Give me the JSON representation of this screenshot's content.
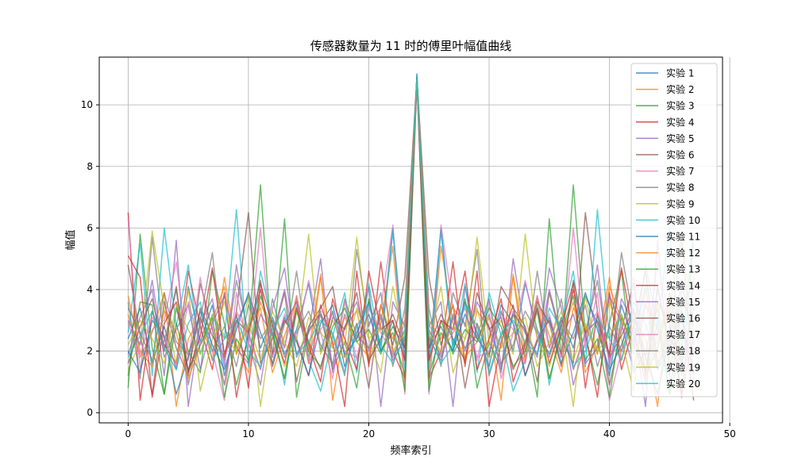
{
  "chart_data": {
    "type": "line",
    "title": "传感器数量为 11 时的傅里叶幅值曲线",
    "xlabel": "频率索引",
    "ylabel": "幅值",
    "xlim": [
      -2.4,
      49.4
    ],
    "ylim": [
      -0.33,
      11.55
    ],
    "xticks": [
      0,
      10,
      20,
      30,
      40,
      50
    ],
    "yticks": [
      0,
      2,
      4,
      6,
      8,
      10
    ],
    "grid": true,
    "legend_position": "top-right",
    "x": [
      0,
      1,
      2,
      3,
      4,
      5,
      6,
      7,
      8,
      9,
      10,
      11,
      12,
      13,
      14,
      15,
      16,
      17,
      18,
      19,
      20,
      21,
      22,
      23,
      24,
      25,
      26,
      27,
      28,
      29,
      30,
      31,
      32,
      33,
      34,
      35,
      36,
      37,
      38,
      39,
      40,
      41,
      42,
      43,
      44,
      45,
      46,
      47
    ],
    "series": [
      {
        "name": "实验 1",
        "color": "#1f77b4",
        "values": [
          2.4,
          3.4,
          1.6,
          2.8,
          1.4,
          4.1,
          2.3,
          3.5,
          1.2,
          2.9,
          3.8,
          2.1,
          3.1,
          1.9,
          2.7,
          4.2,
          2.0,
          3.3,
          1.5,
          2.6,
          3.6,
          2.2,
          6.0,
          1.7,
          11.0,
          1.7,
          6.0,
          2.2,
          3.6,
          2.6,
          1.5,
          3.3,
          2.0,
          4.2,
          2.7,
          1.9,
          3.1,
          2.1,
          3.8,
          2.9,
          1.2,
          3.5,
          2.3,
          4.1,
          1.4,
          2.8,
          1.6,
          3.4
        ]
      },
      {
        "name": "实验 2",
        "color": "#ff7f0e",
        "values": [
          3.2,
          1.8,
          2.6,
          3.9,
          0.2,
          2.4,
          3.1,
          1.7,
          4.4,
          2.2,
          1.3,
          3.6,
          2.5,
          1.1,
          3.8,
          2.0,
          4.5,
          0.4,
          2.8,
          3.3,
          1.6,
          2.9,
          5.4,
          1.0,
          10.9,
          1.0,
          5.4,
          2.9,
          1.6,
          3.3,
          2.8,
          0.4,
          4.5,
          2.0,
          3.8,
          1.1,
          2.5,
          3.6,
          1.3,
          2.2,
          4.4,
          1.7,
          3.1,
          2.4,
          0.2,
          3.9,
          2.6,
          1.8
        ]
      },
      {
        "name": "实验 3",
        "color": "#2ca02c",
        "values": [
          0.8,
          5.8,
          2.1,
          0.6,
          3.4,
          2.0,
          1.3,
          4.6,
          2.9,
          0.9,
          2.5,
          7.4,
          1.8,
          6.3,
          0.5,
          2.7,
          3.2,
          1.4,
          2.3,
          0.8,
          3.7,
          2.0,
          2.6,
          1.2,
          10.8,
          1.2,
          2.6,
          2.0,
          3.7,
          0.8,
          2.3,
          1.4,
          3.2,
          2.7,
          0.5,
          6.3,
          1.8,
          7.4,
          2.5,
          0.9,
          2.9,
          4.6,
          1.3,
          2.0,
          3.4,
          0.6,
          2.1,
          5.8
        ]
      },
      {
        "name": "实验 4",
        "color": "#d62728",
        "values": [
          6.5,
          0.4,
          3.3,
          2.2,
          1.6,
          4.6,
          2.8,
          1.4,
          3.9,
          0.5,
          2.6,
          4.0,
          1.9,
          3.0,
          2.4,
          1.2,
          3.5,
          2.3,
          0.2,
          4.6,
          1.5,
          4.9,
          2.0,
          1.1,
          10.8,
          1.1,
          2.0,
          4.9,
          1.5,
          4.6,
          0.2,
          2.3,
          3.5,
          1.2,
          2.4,
          3.0,
          1.9,
          4.0,
          2.6,
          0.5,
          3.9,
          1.4,
          2.8,
          4.6,
          1.6,
          2.2,
          3.3,
          0.4
        ]
      },
      {
        "name": "实验 5",
        "color": "#9467bd",
        "values": [
          1.9,
          3.1,
          4.0,
          1.2,
          5.6,
          0.2,
          2.9,
          3.7,
          1.5,
          4.8,
          2.3,
          0.9,
          3.4,
          4.7,
          1.8,
          2.6,
          5.0,
          1.3,
          3.2,
          2.4,
          4.1,
          0.2,
          3.6,
          2.8,
          10.7,
          2.8,
          3.6,
          0.2,
          4.1,
          2.4,
          3.2,
          1.3,
          5.0,
          2.6,
          1.8,
          4.7,
          3.4,
          0.9,
          2.3,
          4.8,
          1.5,
          3.7,
          2.9,
          0.2,
          5.6,
          1.2,
          4.0,
          3.1
        ]
      },
      {
        "name": "实验 6",
        "color": "#8c564b",
        "values": [
          4.8,
          2.5,
          0.6,
          3.6,
          2.1,
          1.2,
          4.2,
          2.7,
          0.9,
          3.3,
          6.5,
          1.6,
          2.4,
          3.9,
          1.0,
          2.8,
          3.4,
          4.1,
          1.8,
          2.9,
          0.8,
          3.5,
          2.2,
          4.4,
          10.9,
          4.4,
          2.2,
          3.5,
          0.8,
          2.9,
          1.8,
          4.1,
          3.4,
          2.8,
          1.0,
          3.9,
          2.4,
          1.6,
          6.5,
          3.3,
          0.9,
          2.7,
          4.2,
          1.2,
          2.1,
          3.6,
          0.6,
          2.5
        ]
      },
      {
        "name": "实验 7",
        "color": "#e377c2",
        "values": [
          6.3,
          1.4,
          2.7,
          3.0,
          4.9,
          1.7,
          4.4,
          2.0,
          0.4,
          3.9,
          2.1,
          6.0,
          1.8,
          3.2,
          2.4,
          4.3,
          2.6,
          1.1,
          3.6,
          1.7,
          2.9,
          3.4,
          6.1,
          0.6,
          10.7,
          0.6,
          6.1,
          3.4,
          2.9,
          1.7,
          3.6,
          1.1,
          2.6,
          4.3,
          2.4,
          3.2,
          1.8,
          6.0,
          2.1,
          3.9,
          0.4,
          2.0,
          4.4,
          1.7,
          4.9,
          3.0,
          2.7,
          1.4
        ]
      },
      {
        "name": "实验 8",
        "color": "#7f7f7f",
        "values": [
          3.6,
          1.1,
          5.7,
          2.3,
          4.0,
          0.9,
          3.0,
          5.2,
          1.7,
          4.3,
          2.6,
          1.4,
          3.7,
          2.1,
          4.6,
          1.8,
          3.2,
          2.5,
          1.2,
          5.3,
          2.8,
          3.9,
          1.5,
          3.4,
          10.9,
          3.4,
          1.5,
          3.9,
          2.8,
          5.3,
          1.2,
          2.5,
          3.2,
          1.8,
          4.6,
          2.1,
          3.7,
          1.4,
          2.6,
          4.3,
          1.7,
          5.2,
          3.0,
          0.9,
          4.0,
          2.3,
          5.7,
          1.1
        ]
      },
      {
        "name": "实验 9",
        "color": "#bcbd22",
        "values": [
          1.4,
          2.3,
          5.9,
          3.4,
          1.6,
          4.0,
          0.7,
          2.4,
          3.6,
          1.9,
          3.8,
          0.2,
          2.9,
          1.5,
          2.4,
          5.8,
          1.9,
          3.0,
          2.2,
          5.7,
          2.4,
          1.3,
          4.1,
          2.2,
          10.8,
          2.2,
          4.1,
          1.3,
          2.4,
          5.7,
          2.2,
          3.0,
          1.9,
          5.8,
          2.4,
          1.5,
          2.9,
          0.2,
          3.8,
          1.9,
          3.6,
          2.4,
          0.7,
          4.0,
          1.6,
          3.4,
          5.9,
          2.3
        ]
      },
      {
        "name": "实验 10",
        "color": "#17becf",
        "values": [
          2.6,
          5.5,
          1.2,
          6.0,
          2.8,
          4.8,
          1.9,
          3.2,
          2.4,
          6.6,
          1.5,
          4.6,
          2.9,
          0.9,
          3.5,
          1.7,
          0.7,
          2.5,
          3.9,
          1.3,
          4.2,
          2.0,
          5.9,
          1.4,
          11.0,
          1.4,
          5.9,
          2.0,
          4.2,
          1.3,
          3.9,
          2.5,
          0.7,
          1.7,
          3.5,
          0.9,
          2.9,
          4.6,
          1.5,
          6.6,
          2.4,
          3.2,
          1.9,
          4.8,
          2.8,
          6.0,
          1.2,
          5.5
        ]
      },
      {
        "name": "实验 11",
        "color": "#1f77b4",
        "values": [
          2.0,
          1.3,
          3.0,
          2.5,
          0.6,
          1.8,
          3.3,
          2.2,
          1.4,
          2.7,
          3.9,
          2.6,
          1.6,
          3.1,
          2.3,
          1.2,
          2.9,
          3.5,
          1.9,
          2.4,
          3.2,
          2.0,
          2.8,
          2.1,
          10.9,
          2.1,
          2.8,
          2.0,
          3.2,
          2.4,
          1.9,
          3.5,
          2.9,
          1.2,
          2.3,
          3.1,
          1.6,
          2.6,
          3.9,
          2.7,
          1.4,
          2.2,
          3.3,
          1.8,
          0.6,
          2.5,
          3.0,
          1.3
        ]
      },
      {
        "name": "实验 12",
        "color": "#ff7f0e",
        "values": [
          3.8,
          2.0,
          1.5,
          3.3,
          2.6,
          1.1,
          2.2,
          3.0,
          4.1,
          1.9,
          2.8,
          3.4,
          1.3,
          2.5,
          3.7,
          1.6,
          4.4,
          2.1,
          3.1,
          2.3,
          1.8,
          3.5,
          2.4,
          3.0,
          10.8,
          3.0,
          2.4,
          3.5,
          1.8,
          2.3,
          3.1,
          2.1,
          4.4,
          1.6,
          3.7,
          2.5,
          1.3,
          3.4,
          2.8,
          1.9,
          4.1,
          3.0,
          2.2,
          1.1,
          2.6,
          3.3,
          1.5,
          2.0
        ]
      },
      {
        "name": "实验 13",
        "color": "#2ca02c",
        "values": [
          1.2,
          3.6,
          3.5,
          0.6,
          2.9,
          1.4,
          2.2,
          3.1,
          0.5,
          2.4,
          1.7,
          3.8,
          2.6,
          1.1,
          3.3,
          2.0,
          1.5,
          2.8,
          3.4,
          2.3,
          2.7,
          1.9,
          3.0,
          0.7,
          10.9,
          0.7,
          3.0,
          1.9,
          2.7,
          2.3,
          3.4,
          2.8,
          1.5,
          2.0,
          3.3,
          1.1,
          2.6,
          3.8,
          1.7,
          2.4,
          0.5,
          3.1,
          2.2,
          1.4,
          2.9,
          0.6,
          3.5,
          3.6
        ]
      },
      {
        "name": "实验 14",
        "color": "#d62728",
        "values": [
          5.1,
          4.4,
          0.5,
          2.9,
          3.6,
          1.3,
          2.5,
          4.7,
          1.9,
          3.2,
          0.8,
          4.2,
          2.8,
          1.6,
          3.4,
          2.2,
          1.0,
          3.7,
          2.4,
          1.4,
          4.6,
          2.7,
          3.0,
          1.7,
          10.8,
          1.7,
          3.0,
          2.7,
          4.6,
          1.4,
          2.4,
          3.7,
          1.0,
          2.2,
          3.4,
          1.6,
          2.8,
          4.2,
          0.8,
          3.2,
          1.9,
          4.7,
          2.5,
          1.3,
          3.6,
          2.9,
          0.5,
          4.4
        ]
      },
      {
        "name": "实验 15",
        "color": "#9467bd",
        "values": [
          3.0,
          2.2,
          4.3,
          1.8,
          2.7,
          3.5,
          1.4,
          2.9,
          3.8,
          2.1,
          1.6,
          3.2,
          2.5,
          4.0,
          1.9,
          2.6,
          3.3,
          1.5,
          2.8,
          3.6,
          2.0,
          3.1,
          1.7,
          2.4,
          10.9,
          2.4,
          1.7,
          3.1,
          2.0,
          3.6,
          2.8,
          1.5,
          3.3,
          2.6,
          1.9,
          4.0,
          2.5,
          3.2,
          1.6,
          2.1,
          3.8,
          2.9,
          1.4,
          3.5,
          2.7,
          1.8,
          4.3,
          2.2
        ]
      },
      {
        "name": "实验 16",
        "color": "#8c564b",
        "values": [
          1.6,
          2.8,
          3.7,
          2.0,
          4.1,
          1.3,
          3.4,
          2.5,
          1.8,
          3.0,
          2.6,
          4.3,
          1.5,
          2.9,
          3.6,
          2.3,
          1.4,
          3.1,
          2.7,
          3.9,
          1.7,
          2.4,
          3.2,
          2.1,
          10.8,
          2.1,
          3.2,
          2.4,
          1.7,
          3.9,
          2.7,
          3.1,
          1.4,
          2.3,
          3.6,
          2.9,
          1.5,
          4.3,
          2.6,
          3.0,
          1.8,
          2.5,
          3.4,
          1.3,
          4.1,
          2.0,
          3.7,
          2.8
        ]
      },
      {
        "name": "实验 17",
        "color": "#e377c2",
        "values": [
          2.9,
          1.9,
          3.1,
          2.4,
          1.5,
          3.6,
          2.2,
          2.8,
          1.7,
          3.3,
          2.5,
          1.4,
          3.0,
          2.1,
          3.8,
          1.6,
          2.7,
          3.2,
          2.0,
          1.8,
          3.4,
          2.6,
          1.9,
          2.9,
          10.7,
          2.9,
          1.9,
          2.6,
          3.4,
          1.8,
          2.0,
          3.2,
          2.7,
          1.6,
          3.8,
          2.1,
          3.0,
          1.4,
          2.5,
          3.3,
          1.7,
          2.8,
          2.2,
          3.6,
          1.5,
          2.4,
          3.1,
          1.9
        ]
      },
      {
        "name": "实验 18",
        "color": "#7f7f7f",
        "values": [
          3.4,
          2.6,
          1.7,
          3.9,
          2.3,
          1.9,
          3.1,
          2.0,
          2.8,
          1.5,
          3.5,
          2.4,
          3.0,
          1.8,
          2.6,
          3.3,
          2.2,
          1.6,
          3.7,
          2.5,
          2.1,
          3.2,
          1.8,
          2.7,
          10.9,
          2.7,
          1.8,
          3.2,
          2.1,
          2.5,
          3.7,
          1.6,
          2.2,
          3.3,
          2.6,
          1.8,
          3.0,
          2.4,
          3.5,
          1.5,
          2.8,
          2.0,
          3.1,
          1.9,
          2.3,
          3.9,
          1.7,
          2.6
        ]
      },
      {
        "name": "实验 19",
        "color": "#bcbd22",
        "values": [
          2.2,
          3.0,
          2.4,
          1.6,
          3.5,
          2.7,
          1.9,
          3.2,
          2.5,
          2.0,
          2.9,
          1.7,
          3.3,
          2.3,
          1.5,
          3.1,
          2.6,
          2.1,
          1.8,
          3.4,
          2.4,
          2.8,
          2.0,
          2.6,
          10.8,
          2.6,
          2.0,
          2.8,
          2.4,
          3.4,
          1.8,
          2.1,
          2.6,
          3.1,
          1.5,
          2.3,
          3.3,
          1.7,
          2.9,
          2.0,
          2.5,
          3.2,
          1.9,
          2.7,
          3.5,
          1.6,
          2.4,
          3.0
        ]
      },
      {
        "name": "实验 20",
        "color": "#17becf",
        "values": [
          1.8,
          2.5,
          3.3,
          2.1,
          1.4,
          2.9,
          3.6,
          1.7,
          2.4,
          3.1,
          2.0,
          1.5,
          2.7,
          3.4,
          1.9,
          2.3,
          3.0,
          2.6,
          1.3,
          2.8,
          3.5,
          2.2,
          1.6,
          2.5,
          10.9,
          2.5,
          1.6,
          2.2,
          3.5,
          2.8,
          1.3,
          2.6,
          3.0,
          2.3,
          1.9,
          3.4,
          2.7,
          1.5,
          2.0,
          3.1,
          2.4,
          1.7,
          3.6,
          2.9,
          1.4,
          2.1,
          3.3,
          2.5
        ]
      }
    ]
  }
}
